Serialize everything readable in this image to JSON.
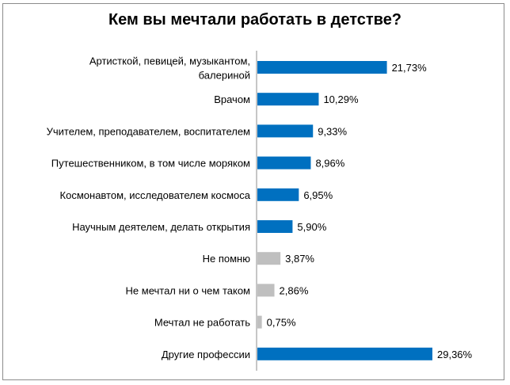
{
  "chart_data": {
    "type": "bar",
    "orientation": "horizontal",
    "title": "Кем вы мечтали работать в детстве?",
    "categories": [
      "Артисткой, певицей, музыкантом, балериной",
      "Врачом",
      "Учителем, преподавателем, воспитателем",
      "Путешественником, в том числе моряком",
      "Космонавтом, исследователем космоса",
      "Научным деятелем, делать открытия",
      "Не помню",
      "Не мечтал ни о чем таком",
      "Мечтал не работать",
      "Другие профессии"
    ],
    "category_lines": [
      [
        "Артисткой, певицей, музыкантом,",
        "балериной"
      ],
      [
        "Врачом"
      ],
      [
        "Учителем, преподавателем, воспитателем"
      ],
      [
        "Путешественником, в том числе моряком"
      ],
      [
        "Космонавтом, исследователем космоса"
      ],
      [
        "Научным деятелем, делать открытия"
      ],
      [
        "Не помню"
      ],
      [
        "Не мечтал ни о чем таком"
      ],
      [
        "Мечтал не работать"
      ],
      [
        "Другие профессии"
      ]
    ],
    "values": [
      21.73,
      10.29,
      9.33,
      8.96,
      6.95,
      5.9,
      3.87,
      2.86,
      0.75,
      29.36
    ],
    "value_labels": [
      "21,73%",
      "10,29%",
      "9,33%",
      "8,96%",
      "6,95%",
      "5,90%",
      "3,87%",
      "2,86%",
      "0,75%",
      "29,36%"
    ],
    "bar_colors": [
      "#0070C0",
      "#0070C0",
      "#0070C0",
      "#0070C0",
      "#0070C0",
      "#0070C0",
      "#BFBFBF",
      "#BFBFBF",
      "#BFBFBF",
      "#0070C0"
    ],
    "xlim": [
      0,
      29.36
    ],
    "grid": false,
    "legend": "none"
  }
}
